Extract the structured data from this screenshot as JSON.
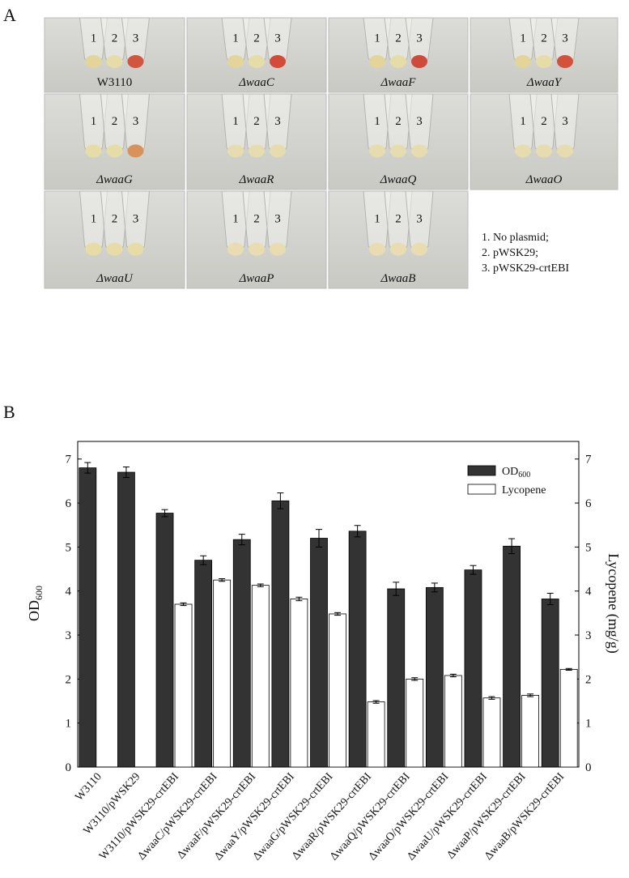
{
  "panel_a": {
    "label": "A",
    "photos": [
      {
        "label": "W3110",
        "tubes": [
          "1",
          "2",
          "3"
        ],
        "tube_colors": [
          "#e3d49a",
          "#e6dca8",
          "#d2553e"
        ]
      },
      {
        "label": "ΔwaaC",
        "tubes": [
          "1",
          "2",
          "3"
        ],
        "tube_colors": [
          "#e3d49a",
          "#e6dca8",
          "#d44a38"
        ]
      },
      {
        "label": "ΔwaaF",
        "tubes": [
          "1",
          "2",
          "3"
        ],
        "tube_colors": [
          "#e3d49a",
          "#e6dca8",
          "#cf4a3a"
        ]
      },
      {
        "label": "ΔwaaY",
        "tubes": [
          "1",
          "2",
          "3"
        ],
        "tube_colors": [
          "#e3d49a",
          "#e6dca8",
          "#d4523c"
        ]
      },
      {
        "label": "ΔwaaG",
        "tubes": [
          "1",
          "2",
          "3"
        ],
        "tube_colors": [
          "#e6dca8",
          "#e6dca8",
          "#d9935a"
        ]
      },
      {
        "label": "ΔwaaR",
        "tubes": [
          "1",
          "2",
          "3"
        ],
        "tube_colors": [
          "#e6dcb0",
          "#e6dcb0",
          "#e6dcb0"
        ]
      },
      {
        "label": "ΔwaaQ",
        "tubes": [
          "1",
          "2",
          "3"
        ],
        "tube_colors": [
          "#e6dcb0",
          "#e6dcb0",
          "#e6dcb0"
        ]
      },
      {
        "label": "ΔwaaO",
        "tubes": [
          "1",
          "2",
          "3"
        ],
        "tube_colors": [
          "#e6dcb0",
          "#e6dcb0",
          "#e6dcb0"
        ]
      },
      {
        "label": "ΔwaaU",
        "tubes": [
          "1",
          "2",
          "3"
        ],
        "tube_colors": [
          "#e8dca6",
          "#e8dca6",
          "#e8dca6"
        ]
      },
      {
        "label": "ΔwaaP",
        "tubes": [
          "1",
          "2",
          "3"
        ],
        "tube_colors": [
          "#e8dcb0",
          "#e8dcb0",
          "#e8dcb0"
        ]
      },
      {
        "label": "ΔwaaB",
        "tubes": [
          "1",
          "2",
          "3"
        ],
        "tube_colors": [
          "#e8dcb0",
          "#e8dcb0",
          "#e8dcb0"
        ]
      }
    ],
    "legend": [
      "1. No plasmid;",
      "2. pWSK29;",
      "3. pWSK29-crtEBI"
    ]
  },
  "chart_data": {
    "type": "bar",
    "panel_label": "B",
    "y_label": "OD",
    "y_label_sub": "600",
    "y2_label": "Lycopene (mg/g)",
    "categories": [
      "W3110",
      "W3110/pWSK29",
      "W3110/pWSK29-crtEBI",
      "ΔwaaC/pWSK29-crtEBI",
      "ΔwaaF/pWSK29-crtEBI",
      "ΔwaaY/pWSK29-crtEBI",
      "ΔwaaG/pWSK29-crtEBI",
      "ΔwaaR/pWSK29-crtEBI",
      "ΔwaaQ/pWSK29-crtEBI",
      "ΔwaaO/pWSK29-crtEBI",
      "ΔwaaU/pWSK29-crtEBI",
      "ΔwaaP/pWSK29-crtEBI",
      "ΔwaaB/pWSK29-crtEBI"
    ],
    "series": [
      {
        "name": "OD",
        "name_sub": "600",
        "color": "#333333",
        "values": [
          6.8,
          6.7,
          5.77,
          4.7,
          5.17,
          6.05,
          5.2,
          5.36,
          4.05,
          4.08,
          4.48,
          5.02,
          3.82
        ],
        "errors": [
          0.12,
          0.12,
          0.08,
          0.1,
          0.12,
          0.18,
          0.2,
          0.13,
          0.15,
          0.1,
          0.1,
          0.17,
          0.13
        ]
      },
      {
        "name": "Lycopene",
        "color": "#ffffff",
        "axis": "y2",
        "values": [
          null,
          null,
          3.7,
          4.25,
          4.13,
          3.82,
          3.48,
          1.48,
          2.0,
          2.08,
          1.57,
          1.63,
          2.22
        ],
        "errors": [
          null,
          null,
          0.03,
          0.03,
          0.03,
          0.04,
          0.03,
          0.03,
          0.03,
          0.03,
          0.03,
          0.03,
          0.02
        ]
      }
    ],
    "ylim": [
      0,
      7.4
    ],
    "yticks": [
      0,
      1,
      2,
      3,
      4,
      5,
      6,
      7
    ],
    "y2lim": [
      0,
      7.4
    ],
    "y2ticks": [
      0,
      1,
      2,
      3,
      4,
      5,
      6,
      7
    ],
    "legend_position": "upper right"
  }
}
